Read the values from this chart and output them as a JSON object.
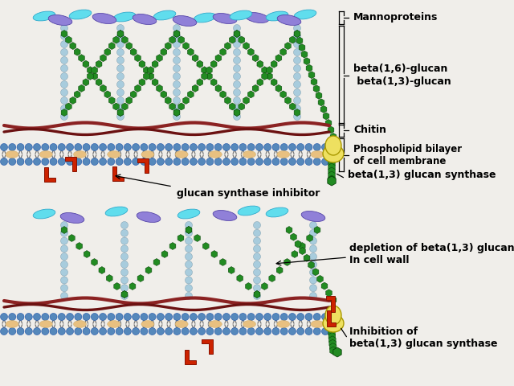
{
  "bg_color": "#d4d0cc",
  "labels": {
    "mannoproteins": "Mannoproteins",
    "beta16_13": "beta(1,6)-glucan\n beta(1,3)-glucan",
    "chitin": "Chitin",
    "phospholipid": "Phospholipid bilayer\nof cell membrane",
    "synthase_top": "beta(1,3) glucan synthase",
    "inhibitor_top": "glucan synthase inhibitor",
    "depletion": "depletion of beta(1,3) glucans\nIn cell wall",
    "inhibition": "Inhibition of\nbeta(1,3) glucan synthase"
  },
  "colors": {
    "cyan_manno": "#5ECFE8",
    "purple_manno": "#8878CC",
    "dark_green_hex": "#228B22",
    "light_blue_bead": "#A8CCDD",
    "dark_red_chitin": "#8B2222",
    "blue_phospho": "#5588BB",
    "peach_phospho": "#E8C080",
    "yellow_synthase": "#EEE060",
    "red_inhibitor": "#CC2200",
    "black": "#000000",
    "white_bg": "#f0eeea"
  }
}
